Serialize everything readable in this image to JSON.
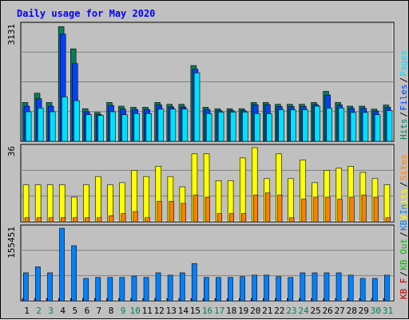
{
  "colors": {
    "background": "#c0c0c0",
    "panel": "#c0c0c0",
    "title": "#0000ff",
    "hits": "#00805c",
    "files": "#0040ff",
    "pages": "#00e0ff",
    "visits": "#ffff00",
    "sites": "#ff8000",
    "kb_in": "#0080ff",
    "kb_out": "#00c000",
    "kb_f": "#c00000",
    "day_weekday": "#000000",
    "day_weekend": "#00805c"
  },
  "chart_data": {
    "type": "bar",
    "title": "Daily usage for May 2020",
    "categories": [
      "1",
      "2",
      "3",
      "4",
      "5",
      "6",
      "7",
      "8",
      "9",
      "10",
      "11",
      "12",
      "13",
      "14",
      "15",
      "16",
      "17",
      "18",
      "19",
      "20",
      "21",
      "22",
      "23",
      "24",
      "25",
      "26",
      "27",
      "28",
      "29",
      "30",
      "31"
    ],
    "weekend_days": [
      2,
      3,
      9,
      10,
      16,
      17,
      23,
      24,
      30,
      31
    ],
    "panels": [
      {
        "id": "hits-files-pages",
        "max_label": "3131",
        "ylim": [
          0,
          3131
        ],
        "legend": [
          {
            "label": "Hits",
            "color_key": "hits"
          },
          {
            "label": "Files",
            "color_key": "files"
          },
          {
            "label": "Pages",
            "color_key": "pages"
          }
        ],
        "separator": "/",
        "series": [
          {
            "name": "Hits",
            "color_key": "hits",
            "values": [
              1050,
              1300,
              1050,
              3100,
              2500,
              880,
              780,
              1050,
              950,
              920,
              920,
              1050,
              1000,
              1000,
              2050,
              920,
              880,
              880,
              880,
              1050,
              1050,
              1000,
              1000,
              1000,
              1050,
              1350,
              1050,
              950,
              950,
              870,
              980
            ]
          },
          {
            "name": "Files",
            "color_key": "files",
            "values": [
              950,
              1150,
              950,
              2900,
              2100,
              800,
              720,
              970,
              870,
              860,
              860,
              980,
              930,
              930,
              1950,
              860,
              830,
              830,
              830,
              990,
              990,
              940,
              940,
              940,
              990,
              1250,
              980,
              890,
              890,
              820,
              920
            ]
          },
          {
            "name": "Pages",
            "color_key": "pages",
            "values": [
              800,
              900,
              800,
              1200,
              1100,
              720,
              700,
              800,
              720,
              750,
              750,
              870,
              870,
              870,
              1850,
              750,
              790,
              790,
              790,
              750,
              750,
              850,
              850,
              850,
              950,
              900,
              900,
              780,
              780,
              720,
              830
            ]
          }
        ]
      },
      {
        "id": "visits-sites",
        "max_label": "36",
        "ylim": [
          0,
          36
        ],
        "legend": [
          {
            "label": "Visits",
            "color_key": "visits"
          },
          {
            "label": "Sites",
            "color_key": "sites"
          }
        ],
        "separator": "/",
        "series": [
          {
            "name": "Visits",
            "color_key": "visits",
            "values": [
              18,
              18,
              18,
              18,
              12,
              18,
              22,
              18,
              19,
              25,
              22,
              27,
              22,
              17,
              33,
              33,
              20,
              20,
              31,
              36,
              21,
              33,
              21,
              30,
              19,
              25,
              26,
              27,
              24,
              21,
              18
            ]
          },
          {
            "name": "Sites",
            "color_key": "sites",
            "values": [
              2,
              2,
              2,
              2,
              2,
              2,
              2,
              3,
              4,
              5,
              2,
              10,
              10,
              9,
              13,
              12,
              4,
              4,
              4,
              13,
              14,
              13,
              2,
              11,
              12,
              12,
              11,
              12,
              13,
              12,
              2
            ]
          }
        ]
      },
      {
        "id": "kb",
        "max_label": "155451",
        "ylim": [
          0,
          155451
        ],
        "legend": [
          {
            "label": "KB F",
            "color_key": "kb_f"
          },
          {
            "label": "KB Out",
            "color_key": "kb_out"
          },
          {
            "label": "KB In",
            "color_key": "kb_in"
          }
        ],
        "separator": "/",
        "series": [
          {
            "name": "KB F",
            "color_key": "kb_f",
            "values": [
              5000,
              5000,
              5000,
              5000,
              5000,
              5000,
              5000,
              5000,
              5000,
              5000,
              5000,
              5000,
              5000,
              5000,
              5000,
              5000,
              5000,
              5000,
              5000,
              5000,
              5000,
              5000,
              5000,
              5000,
              5000,
              5000,
              5000,
              5000,
              5000,
              5000,
              5000
            ]
          },
          {
            "name": "KB In",
            "color_key": "kb_in",
            "values": [
              60000,
              73000,
              60000,
              155451,
              118000,
              48000,
              50000,
              50000,
              50000,
              53000,
              50000,
              60000,
              55000,
              60000,
              80000,
              50000,
              50000,
              50000,
              52000,
              55000,
              55000,
              52000,
              50000,
              60000,
              60000,
              60000,
              60000,
              55000,
              48000,
              48000,
              55000
            ]
          }
        ]
      }
    ]
  }
}
